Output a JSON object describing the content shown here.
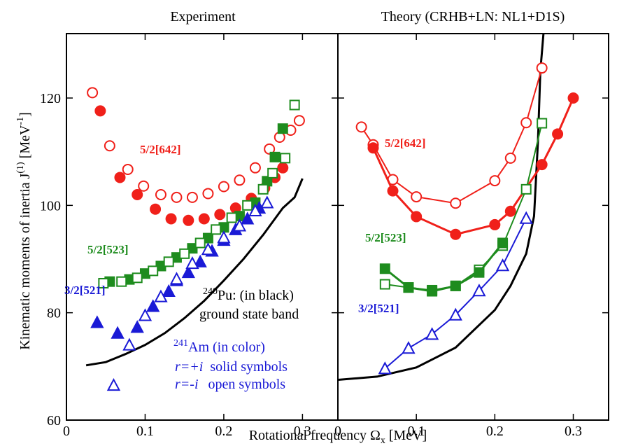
{
  "chart_data": [
    {
      "type": "scatter",
      "title": "Experiment",
      "y_label": {
        "text": "Kinematic moments of inertia  J",
        "sup": "(1)",
        "unit": " [MeV",
        "unit_sup": "-1",
        "close": "]"
      },
      "x_label": {
        "text": "Rotational  frequency Ω",
        "sub": "x",
        "unit": " [MeV]"
      },
      "xlim": [
        0,
        0.345
      ],
      "xticks": [
        0,
        0.1,
        0.2,
        0.3
      ],
      "ylim": [
        60,
        132
      ],
      "yticks": [
        60,
        80,
        100,
        120
      ],
      "labels": [
        {
          "text": "5/2[642]",
          "color": "#f0201a"
        },
        {
          "text": "5/2[523]",
          "color": "#1e8c1e"
        },
        {
          "text": "3/2[521]",
          "color": "#1a1ad6"
        }
      ],
      "notes": {
        "pu_mass": "240",
        "pu": "Pu: (in black)",
        "band": "ground state band",
        "am_mass": "241",
        "am": "Am (in color)",
        "plus": "r=+i",
        "solid": "solid symbols",
        "minus": "r=-i",
        "open": "open symbols",
        "color": "#1a1ad6"
      },
      "series": [
        {
          "color": "#000000",
          "marker": "none",
          "line": true,
          "x": [
            0.025,
            0.05,
            0.075,
            0.1,
            0.125,
            0.15,
            0.175,
            0.2,
            0.225,
            0.25,
            0.275,
            0.29,
            0.3
          ],
          "values": [
            70.2,
            70.8,
            72.3,
            74,
            76.2,
            79,
            82.2,
            86,
            90,
            94.5,
            99.5,
            101.5,
            105
          ]
        },
        {
          "color": "#f0201a",
          "marker": "circle",
          "filled": true,
          "line": false,
          "x": [
            0.043,
            0.068,
            0.09,
            0.113,
            0.133,
            0.155,
            0.175,
            0.195,
            0.215,
            0.235,
            0.252,
            0.265,
            0.275
          ],
          "values": [
            117.6,
            105.2,
            102,
            99.3,
            97.5,
            97.2,
            97.5,
            98.3,
            99.5,
            101.3,
            103.2,
            105.2,
            107
          ]
        },
        {
          "color": "#f0201a",
          "marker": "circle",
          "filled": false,
          "line": false,
          "x": [
            0.033,
            0.055,
            0.078,
            0.098,
            0.12,
            0.14,
            0.16,
            0.18,
            0.2,
            0.22,
            0.24,
            0.258,
            0.271,
            0.285,
            0.296
          ],
          "values": [
            121,
            111.1,
            106.7,
            103.6,
            102,
            101.5,
            101.5,
            102.2,
            103.5,
            104.7,
            107,
            110.5,
            112.7,
            114,
            115.8
          ]
        },
        {
          "color": "#1e8c1e",
          "marker": "square",
          "filled": true,
          "line": false,
          "x": [
            0.055,
            0.08,
            0.1,
            0.12,
            0.14,
            0.16,
            0.18,
            0.2,
            0.22,
            0.24,
            0.255,
            0.265,
            0.275
          ],
          "values": [
            85.8,
            86.2,
            87.3,
            88.7,
            90.3,
            92,
            93.9,
            95.9,
            98,
            100.5,
            104.5,
            109,
            114.3
          ]
        },
        {
          "color": "#1e8c1e",
          "marker": "square",
          "filled": false,
          "line": false,
          "x": [
            0.047,
            0.07,
            0.09,
            0.11,
            0.13,
            0.15,
            0.17,
            0.19,
            0.21,
            0.23,
            0.25,
            0.262,
            0.278,
            0.29
          ],
          "values": [
            85.5,
            85.8,
            86.5,
            87.8,
            89.5,
            91,
            93,
            95.5,
            97.7,
            100,
            103,
            106,
            108.8,
            118.7
          ]
        },
        {
          "color": "#1a1ad6",
          "marker": "triangle",
          "filled": true,
          "line": false,
          "x": [
            0.039,
            0.065,
            0.09,
            0.11,
            0.13,
            0.14,
            0.155,
            0.17,
            0.185,
            0.2,
            0.215,
            0.23,
            0.245
          ],
          "values": [
            78.2,
            76.2,
            77.3,
            81.2,
            84,
            86,
            87.5,
            89.5,
            91.5,
            93.5,
            95.5,
            97.5,
            99.5
          ]
        },
        {
          "color": "#1a1ad6",
          "marker": "triangle",
          "filled": false,
          "line": false,
          "x": [
            0.06,
            0.08,
            0.1,
            0.12,
            0.14,
            0.16,
            0.18,
            0.2,
            0.22,
            0.24,
            0.255
          ],
          "values": [
            66.5,
            74,
            79.5,
            83,
            86.3,
            89.2,
            91.8,
            94,
            96.2,
            99,
            100.5
          ]
        }
      ]
    },
    {
      "type": "scatter",
      "title": "Theory (CRHB+LN: NL1+D1S)",
      "xlim": [
        0,
        0.345
      ],
      "xticks": [
        0,
        0.1,
        0.2,
        0.3
      ],
      "ylim": [
        60,
        132
      ],
      "yticks": [
        60,
        80,
        100,
        120
      ],
      "labels": [
        {
          "text": "5/2[642]",
          "color": "#f0201a"
        },
        {
          "text": "5/2[523]",
          "color": "#1e8c1e"
        },
        {
          "text": "3/2[521]",
          "color": "#1a1ad6"
        }
      ],
      "series": [
        {
          "color": "#000000",
          "marker": "none",
          "line": true,
          "x": [
            0,
            0.05,
            0.1,
            0.15,
            0.2,
            0.22,
            0.24,
            0.25,
            0.255,
            0.258,
            0.262
          ],
          "values": [
            67.5,
            68.1,
            69.8,
            73.5,
            80.5,
            85,
            91,
            98,
            112,
            125,
            132
          ]
        },
        {
          "color": "#f0201a",
          "marker": "circle",
          "filled": false,
          "line": true,
          "x": [
            0.03,
            0.045,
            0.07,
            0.1,
            0.15,
            0.2,
            0.22,
            0.24,
            0.26
          ],
          "values": [
            114.6,
            111.3,
            104.8,
            101.6,
            100.4,
            104.6,
            108.8,
            115.4,
            125.6
          ]
        },
        {
          "color": "#f0201a",
          "marker": "circle",
          "filled": true,
          "line": true,
          "x": [
            0.045,
            0.07,
            0.1,
            0.15,
            0.2,
            0.22,
            0.26,
            0.28,
            0.3
          ],
          "values": [
            110.7,
            102.7,
            97.9,
            94.6,
            96.4,
            98.9,
            107.6,
            113.3,
            120
          ]
        },
        {
          "color": "#1e8c1e",
          "marker": "square",
          "filled": false,
          "line": true,
          "x": [
            0.06,
            0.09,
            0.12,
            0.15,
            0.18,
            0.21,
            0.24,
            0.26
          ],
          "values": [
            85.3,
            84.7,
            84.2,
            85,
            88,
            92.5,
            103,
            115.3
          ]
        },
        {
          "color": "#1e8c1e",
          "marker": "square",
          "filled": true,
          "line": true,
          "x": [
            0.06,
            0.09,
            0.12,
            0.15,
            0.18,
            0.21
          ],
          "values": [
            88.2,
            84.7,
            84,
            85,
            87.5,
            93
          ]
        },
        {
          "color": "#1a1ad6",
          "marker": "triangle",
          "filled": false,
          "line": true,
          "x": [
            0.06,
            0.09,
            0.12,
            0.15,
            0.18,
            0.21,
            0.24
          ],
          "values": [
            69.6,
            73.4,
            76,
            79.6,
            84.1,
            88.8,
            97.6
          ]
        }
      ]
    }
  ]
}
